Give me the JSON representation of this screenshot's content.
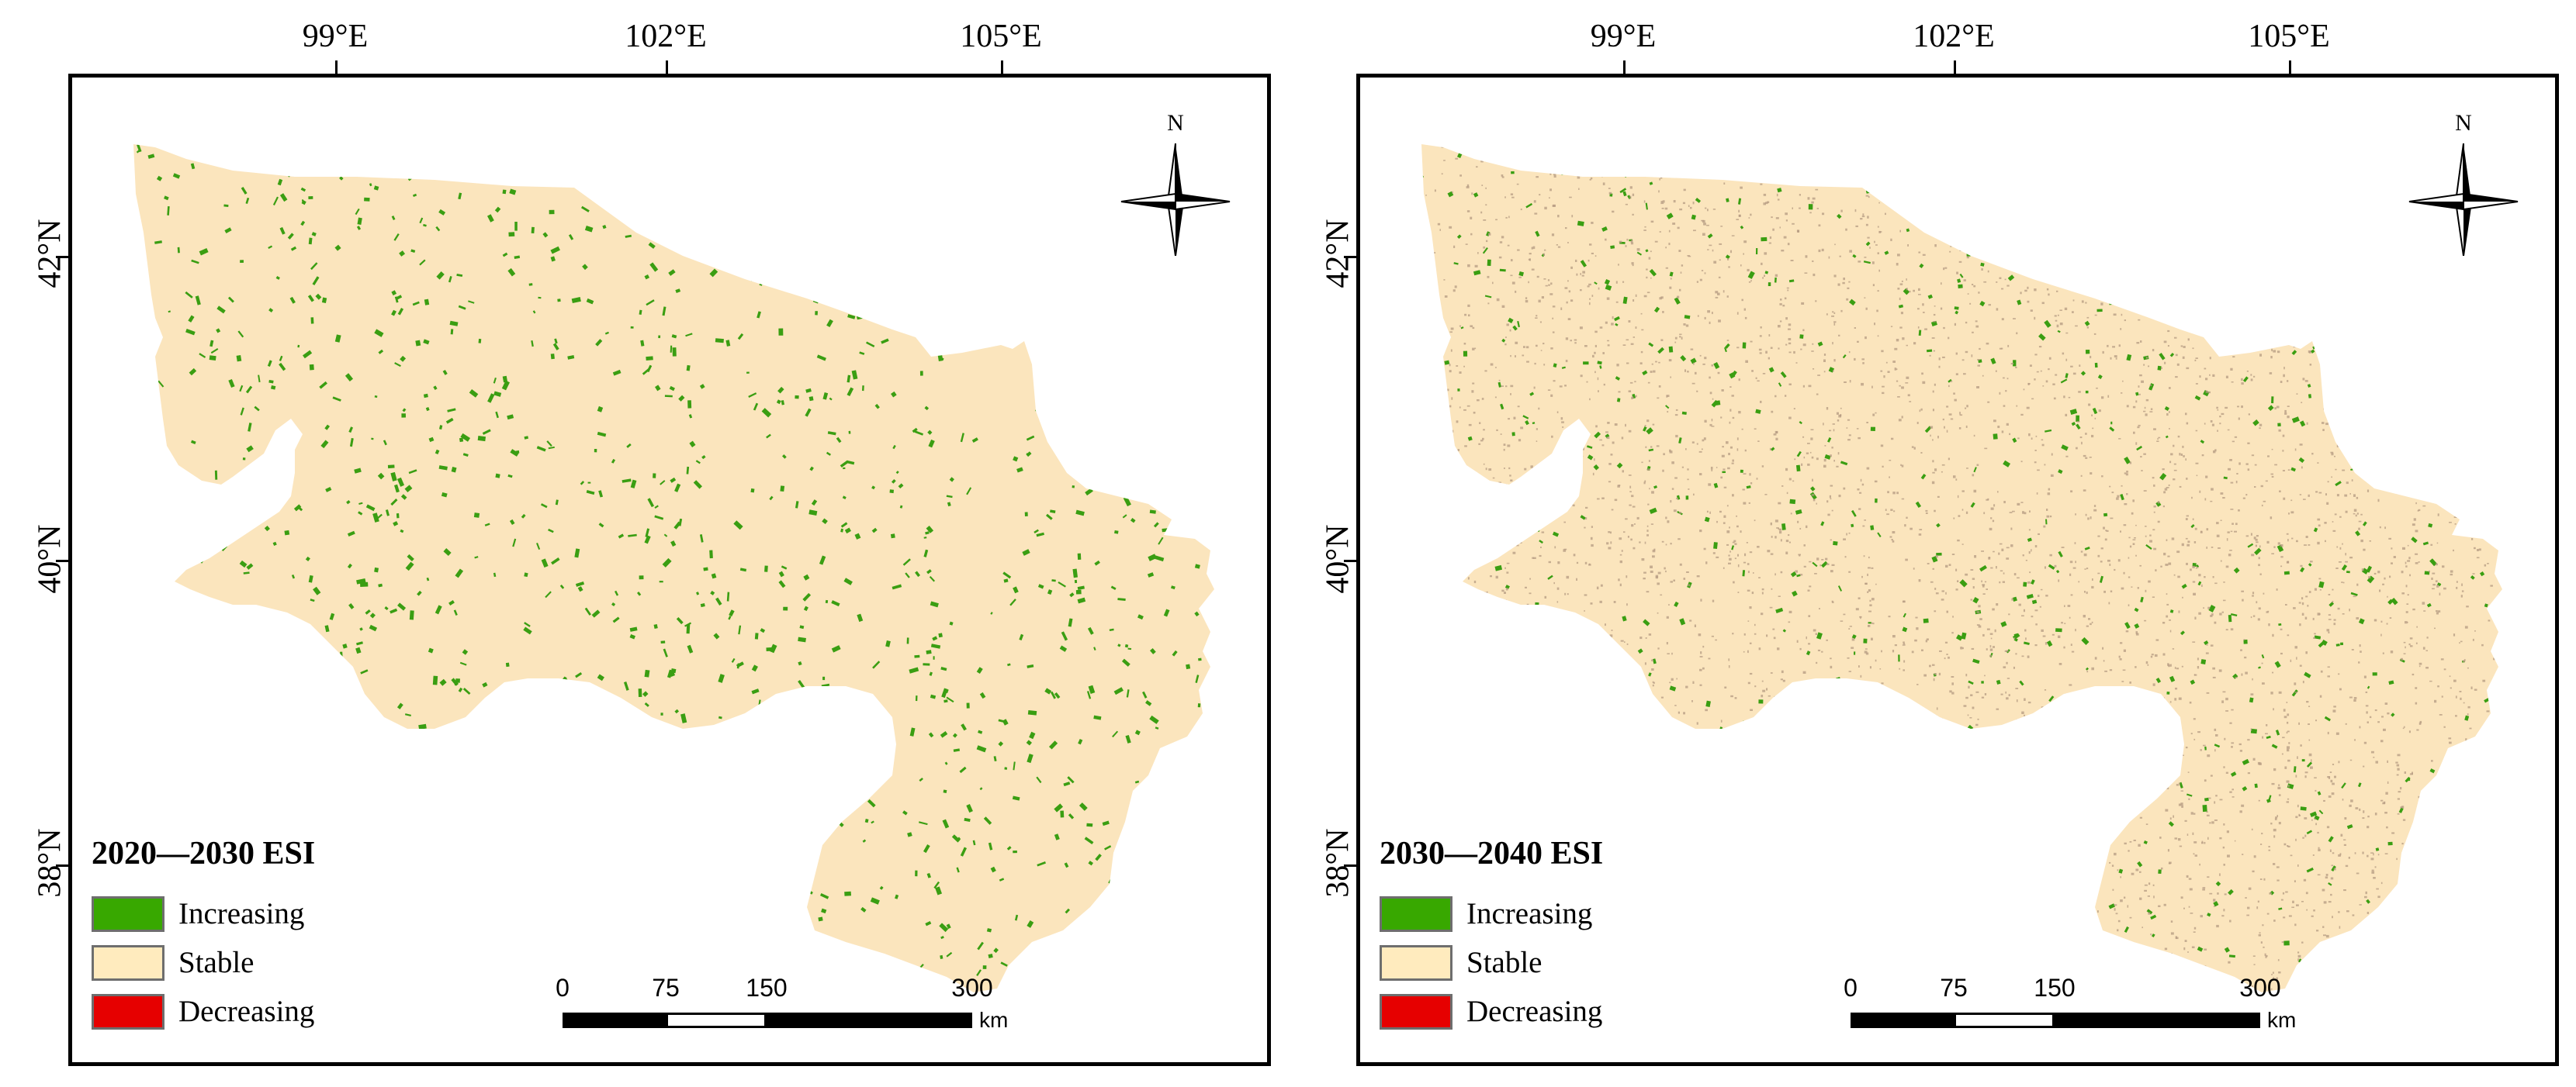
{
  "panels": [
    {
      "title": "2020—2030 ESI",
      "lon_labels": [
        "99°E",
        "102°E",
        "105°E"
      ],
      "lat_labels": [
        "42°N",
        "40°N",
        "38°N"
      ],
      "north_label": "N",
      "scale_numbers": [
        "0",
        "75",
        "150",
        "300"
      ],
      "scale_unit": "km",
      "legend": [
        {
          "label": "Increasing",
          "color": "#38a800"
        },
        {
          "label": "Stable",
          "color": "#ffebbe"
        },
        {
          "label": "Decreasing",
          "color": "#e60000"
        }
      ],
      "pattern_density": {
        "increasing": 0.55,
        "decreasing_tint": 0.0
      }
    },
    {
      "title": "2030—2040 ESI",
      "lon_labels": [
        "99°E",
        "102°E",
        "105°E"
      ],
      "lat_labels": [
        "42°N",
        "40°N",
        "38°N"
      ],
      "north_label": "N",
      "scale_numbers": [
        "0",
        "75",
        "150",
        "300"
      ],
      "scale_unit": "km",
      "legend": [
        {
          "label": "Increasing",
          "color": "#38a800"
        },
        {
          "label": "Stable",
          "color": "#ffebbe"
        },
        {
          "label": "Decreasing",
          "color": "#e60000"
        }
      ],
      "pattern_density": {
        "increasing": 0.35,
        "decreasing_tint": 0.6
      }
    }
  ],
  "colors": {
    "stable_fill": "#fbe5bd",
    "increasing_fill": "#3a9e12",
    "speckle_fill": "#b49a82",
    "frame": "#000000"
  }
}
